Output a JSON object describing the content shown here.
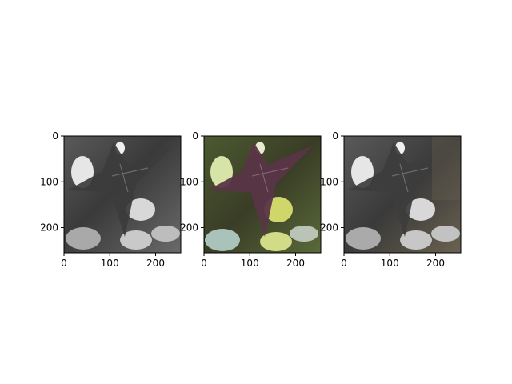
{
  "figure": {
    "background": "#ffffff"
  },
  "chart_data": [
    {
      "type": "image",
      "panel": "left",
      "description_colors": [
        "#3a3a3a",
        "#8a8a8a",
        "#e0e0e0"
      ],
      "xlim": [
        0,
        255
      ],
      "ylim": [
        255,
        0
      ],
      "xticks": [
        0,
        100,
        200
      ],
      "yticks": [
        0,
        100,
        200
      ],
      "xtick_labels": [
        "0",
        "100",
        "200"
      ],
      "ytick_labels": [
        "0",
        "100",
        "200"
      ]
    },
    {
      "type": "image",
      "panel": "center",
      "description_colors": [
        "#4e2a3a",
        "#6f4a58",
        "#cfd66a",
        "#3f5a2a"
      ],
      "xlim": [
        0,
        255
      ],
      "ylim": [
        255,
        0
      ],
      "xticks": [
        0,
        100,
        200
      ],
      "yticks": [
        0,
        100,
        200
      ],
      "xtick_labels": [
        "0",
        "100",
        "200"
      ],
      "ytick_labels": [
        "0",
        "100",
        "200"
      ]
    },
    {
      "type": "image",
      "panel": "right",
      "description_colors": [
        "#3b3b3b",
        "#8b8b8b",
        "#6b6250",
        "#d8d8d8"
      ],
      "xlim": [
        0,
        255
      ],
      "ylim": [
        255,
        0
      ],
      "xticks": [
        0,
        100,
        200
      ],
      "yticks": [
        0,
        100,
        200
      ],
      "xtick_labels": [
        "0",
        "100",
        "200"
      ],
      "ytick_labels": [
        "0",
        "100",
        "200"
      ]
    }
  ]
}
